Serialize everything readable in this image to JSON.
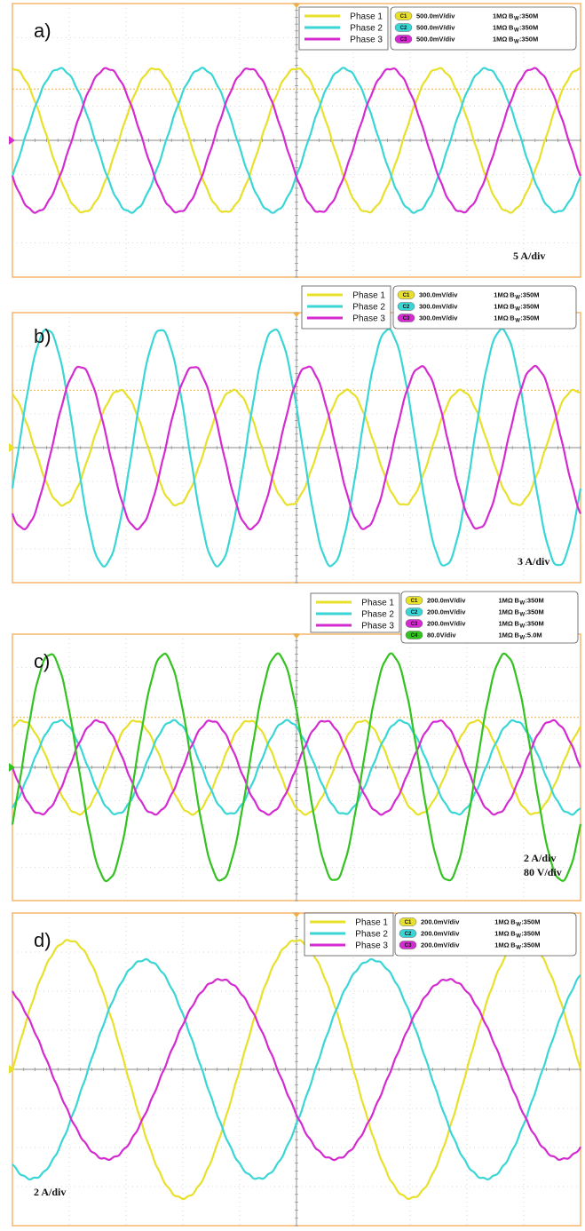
{
  "colors": {
    "phase1": "#e8e02a",
    "phase2": "#3ad6d6",
    "phase3": "#d42bd0",
    "ch4": "#33c21f",
    "frame": "#f5b56b",
    "reference": "#f0b040",
    "grid": "#cfcfcf",
    "axis": "#8a8a8a"
  },
  "chart_data": [
    {
      "type": "line",
      "panel_label": "a)",
      "scale_labels": [
        "5 A/div"
      ],
      "legend": [
        "Phase 1",
        "Phase 2",
        "Phase 3"
      ],
      "channels": [
        {
          "id": "C1",
          "scale": "500.0mV/div",
          "impedance": "1MΩ",
          "bw": "350M"
        },
        {
          "id": "C2",
          "scale": "500.0mV/div",
          "impedance": "1MΩ",
          "bw": "350M"
        },
        {
          "id": "C3",
          "scale": "500.0mV/div",
          "impedance": "1MΩ",
          "bw": "350M"
        }
      ],
      "ylim": [
        -4,
        4
      ],
      "grid_divisions": {
        "x": 10,
        "y": 8
      },
      "reference_level_div": 1.5,
      "series": [
        {
          "name": "Phase 1",
          "color": "phase1",
          "amplitude_div": 2.1,
          "cycles": 4.0,
          "phase_deg": 90
        },
        {
          "name": "Phase 2",
          "color": "phase2",
          "amplitude_div": 2.1,
          "cycles": 4.0,
          "phase_deg": -30
        },
        {
          "name": "Phase 3",
          "color": "phase3",
          "amplitude_div": 2.1,
          "cycles": 4.0,
          "phase_deg": 210
        }
      ]
    },
    {
      "type": "line",
      "panel_label": "b)",
      "scale_labels": [
        "3 A/div"
      ],
      "legend": [
        "Phase 1",
        "Phase 2",
        "Phase 3"
      ],
      "channels": [
        {
          "id": "C1",
          "scale": "300.0mV/div",
          "impedance": "1MΩ",
          "bw": "350M"
        },
        {
          "id": "C2",
          "scale": "300.0mV/div",
          "impedance": "1MΩ",
          "bw": "350M"
        },
        {
          "id": "C3",
          "scale": "300.0mV/div",
          "impedance": "1MΩ",
          "bw": "350M"
        }
      ],
      "ylim": [
        -4,
        4
      ],
      "grid_divisions": {
        "x": 10,
        "y": 8
      },
      "reference_level_div": 1.7,
      "series": [
        {
          "name": "Phase 1",
          "color": "phase1",
          "amplitude_div": 1.7,
          "cycles": 5.0,
          "phase_deg": 110
        },
        {
          "name": "Phase 2",
          "color": "phase2",
          "amplitude_div": 3.5,
          "cycles": 5.0,
          "phase_deg": -20
        },
        {
          "name": "Phase 3",
          "color": "phase3",
          "amplitude_div": 2.4,
          "cycles": 5.0,
          "phase_deg": 235
        }
      ]
    },
    {
      "type": "line",
      "panel_label": "c)",
      "scale_labels": [
        "2 A/div",
        "80 V/div"
      ],
      "legend": [
        "Phase 1",
        "Phase 2",
        "Phase 3"
      ],
      "channels": [
        {
          "id": "C1",
          "scale": "200.0mV/div",
          "impedance": "1MΩ",
          "bw": "350M"
        },
        {
          "id": "C2",
          "scale": "200.0mV/div",
          "impedance": "1MΩ",
          "bw": "350M"
        },
        {
          "id": "C3",
          "scale": "200.0mV/div",
          "impedance": "1MΩ",
          "bw": "350M"
        },
        {
          "id": "C4",
          "scale": "80.0V/div",
          "impedance": "1MΩ",
          "bw": "5.0M"
        }
      ],
      "ylim": [
        -4,
        4
      ],
      "grid_divisions": {
        "x": 10,
        "y": 8
      },
      "reference_level_div": 1.5,
      "series": [
        {
          "name": "Phase 1",
          "color": "phase1",
          "amplitude_div": 1.4,
          "cycles": 5.0,
          "phase_deg": 60
        },
        {
          "name": "Phase 2",
          "color": "phase2",
          "amplitude_div": 1.4,
          "cycles": 5.0,
          "phase_deg": -60
        },
        {
          "name": "Phase 3",
          "color": "phase3",
          "amplitude_div": 1.4,
          "cycles": 5.0,
          "phase_deg": 180
        },
        {
          "name": "C4",
          "color": "ch4",
          "amplitude_div": 3.4,
          "cycles": 5.0,
          "phase_deg": -30
        }
      ]
    },
    {
      "type": "line",
      "panel_label": "d)",
      "scale_labels": [
        "2 A/div"
      ],
      "legend": [
        "Phase 1",
        "Phase 2",
        "Phase 3"
      ],
      "channels": [
        {
          "id": "C1",
          "scale": "200.0mV/div",
          "impedance": "1MΩ",
          "bw": "350M"
        },
        {
          "id": "C2",
          "scale": "200.0mV/div",
          "impedance": "1MΩ",
          "bw": "350M"
        },
        {
          "id": "C3",
          "scale": "200.0mV/div",
          "impedance": "1MΩ",
          "bw": "350M"
        }
      ],
      "ylim": [
        -4,
        4
      ],
      "grid_divisions": {
        "x": 10,
        "y": 8
      },
      "reference_level_div": null,
      "series": [
        {
          "name": "Phase 1",
          "color": "phase1",
          "amplitude_div": 3.3,
          "cycles": 2.5,
          "phase_deg": 0
        },
        {
          "name": "Phase 2",
          "color": "phase2",
          "amplitude_div": 2.8,
          "cycles": 2.5,
          "phase_deg": -120
        },
        {
          "name": "Phase 3",
          "color": "phase3",
          "amplitude_div": 2.3,
          "cycles": 2.5,
          "phase_deg": 120
        }
      ]
    }
  ]
}
